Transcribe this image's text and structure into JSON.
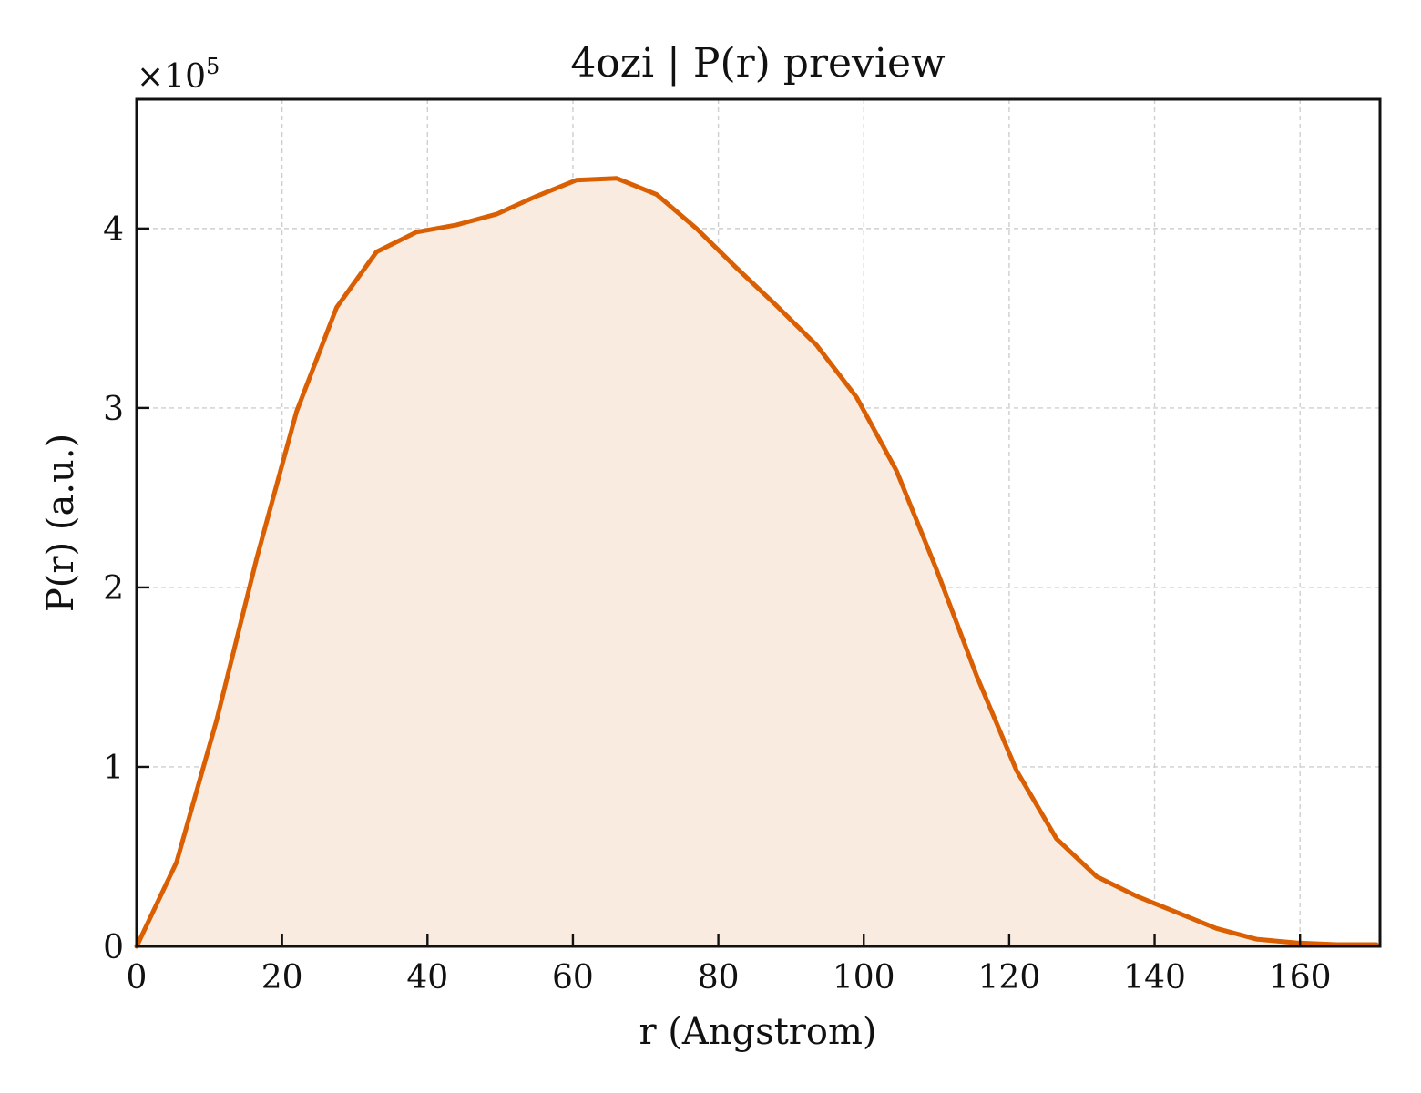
{
  "chart_data": {
    "type": "area",
    "title": "4ozi | P(r) preview",
    "xlabel": "r (Angstrom)",
    "ylabel": "P(r) (a.u.)",
    "y_multiplier": "×10",
    "y_multiplier_exp": "5",
    "xlim": [
      0,
      171
    ],
    "ylim": [
      0,
      4.72
    ],
    "x_ticks": [
      0,
      20,
      40,
      60,
      80,
      100,
      120,
      140,
      160
    ],
    "x_tick_labels": [
      "0",
      "20",
      "40",
      "60",
      "80",
      "100",
      "120",
      "140",
      "160"
    ],
    "y_ticks": [
      0,
      1,
      2,
      3,
      4
    ],
    "y_tick_labels": [
      "0",
      "1",
      "2",
      "3",
      "4"
    ],
    "grid": true,
    "series": [
      {
        "color": "#d95f02",
        "fill_color": "#f9ebe0",
        "x": [
          0,
          5.5,
          11,
          16.5,
          22,
          27.5,
          33,
          38.5,
          44,
          49.5,
          55,
          60.5,
          66,
          71.5,
          77,
          82.5,
          88,
          93.5,
          99,
          104.5,
          110,
          115.5,
          121,
          126.5,
          132,
          137.5,
          143,
          148.5,
          154,
          159.5,
          165,
          170.5
        ],
        "y": [
          0,
          0.47,
          1.26,
          2.16,
          2.98,
          3.56,
          3.87,
          3.98,
          4.02,
          4.08,
          4.18,
          4.27,
          4.28,
          4.19,
          4.0,
          3.78,
          3.57,
          3.35,
          3.06,
          2.65,
          2.1,
          1.51,
          0.98,
          0.6,
          0.39,
          0.28,
          0.19,
          0.1,
          0.04,
          0.02,
          0.01,
          0.01
        ]
      }
    ]
  }
}
